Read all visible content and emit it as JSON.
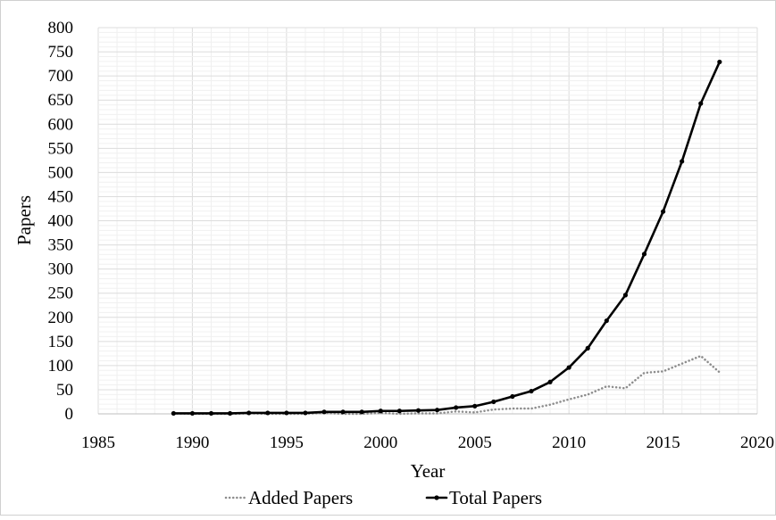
{
  "chart_data": {
    "type": "line",
    "title": "",
    "xlabel": "Year",
    "ylabel": "Papers",
    "xlim": [
      1985,
      2020
    ],
    "ylim": [
      0,
      800
    ],
    "x_ticks": [
      1985,
      1990,
      1995,
      2000,
      2005,
      2010,
      2015,
      2020
    ],
    "y_ticks": [
      0,
      50,
      100,
      150,
      200,
      250,
      300,
      350,
      400,
      450,
      500,
      550,
      600,
      650,
      700,
      750,
      800
    ],
    "grid": true,
    "legend": "bottom",
    "x": [
      1989,
      1990,
      1991,
      1992,
      1993,
      1994,
      1995,
      1996,
      1997,
      1998,
      1999,
      2000,
      2001,
      2002,
      2003,
      2004,
      2005,
      2006,
      2007,
      2008,
      2009,
      2010,
      2011,
      2012,
      2013,
      2014,
      2015,
      2016,
      2017,
      2018
    ],
    "series": [
      {
        "name": "Added Papers",
        "style": "dotted",
        "color": "#8c8c8c",
        "markers": false,
        "values": [
          1,
          0,
          0,
          0,
          1,
          0,
          0,
          0,
          2,
          0,
          0,
          2,
          0,
          1,
          1,
          5,
          3,
          9,
          11,
          11,
          19,
          30,
          40,
          57,
          53,
          85,
          88,
          104,
          120,
          86
        ]
      },
      {
        "name": "Total Papers",
        "style": "solid",
        "color": "#000000",
        "markers": true,
        "values": [
          1,
          1,
          1,
          1,
          2,
          2,
          2,
          2,
          4,
          4,
          4,
          6,
          6,
          7,
          8,
          13,
          16,
          25,
          36,
          47,
          66,
          96,
          136,
          193,
          246,
          331,
          419,
          523,
          643,
          729
        ]
      }
    ]
  }
}
